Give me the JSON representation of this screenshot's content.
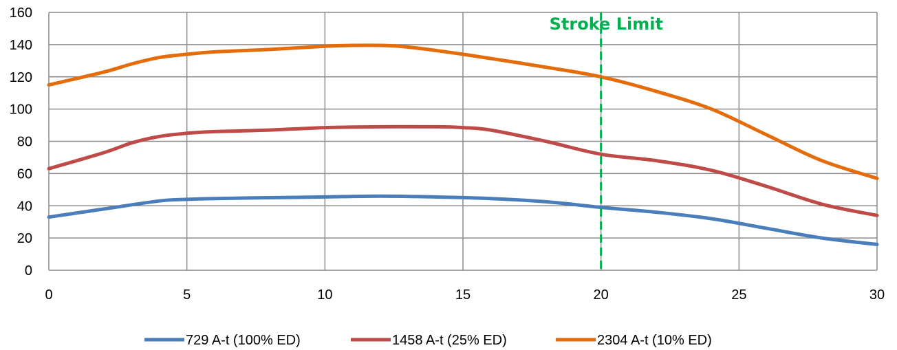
{
  "chart_data": {
    "type": "line",
    "title": "",
    "xlabel": "",
    "ylabel": "",
    "xlim": [
      0,
      30
    ],
    "ylim": [
      0,
      160
    ],
    "x_ticks": [
      0,
      5,
      10,
      15,
      20,
      25,
      30
    ],
    "y_ticks": [
      0,
      20,
      40,
      60,
      80,
      100,
      120,
      140,
      160
    ],
    "grid": true,
    "legend_position": "bottom",
    "series": [
      {
        "name": "729 A-t (100% ED)",
        "color": "#4a7ebb",
        "x": [
          0,
          2,
          4,
          5,
          6,
          8,
          10,
          12,
          14,
          16,
          18,
          20,
          22,
          24,
          26,
          28,
          30
        ],
        "y": [
          33,
          38,
          43,
          44,
          44.5,
          45,
          45.5,
          46,
          45.5,
          44.5,
          42.5,
          39,
          36,
          32,
          26,
          20,
          16
        ]
      },
      {
        "name": "1458 A-t (25% ED)",
        "color": "#be4b48",
        "x": [
          0,
          2,
          3,
          4,
          5,
          6,
          8,
          10,
          12,
          14,
          15,
          16,
          18,
          20,
          22,
          24,
          26,
          28,
          30
        ],
        "y": [
          63,
          73,
          79,
          83,
          85,
          86,
          87,
          88.5,
          89,
          89,
          88.5,
          87,
          80,
          72,
          68,
          62,
          52,
          41,
          34
        ]
      },
      {
        "name": "2304 A-t (10% ED)",
        "color": "#e46c0a",
        "x": [
          0,
          2,
          3,
          4,
          5,
          6,
          8,
          10,
          11,
          12,
          13,
          15,
          18,
          20,
          22,
          24,
          26,
          28,
          30
        ],
        "y": [
          115,
          123,
          128,
          132,
          134,
          135.5,
          137,
          139,
          139.5,
          139.5,
          138.5,
          134,
          126,
          120,
          111,
          100,
          84,
          68,
          57
        ]
      }
    ],
    "annotations": [
      {
        "text": "Stroke Limit",
        "x": 20,
        "color": "#00b050"
      }
    ]
  }
}
